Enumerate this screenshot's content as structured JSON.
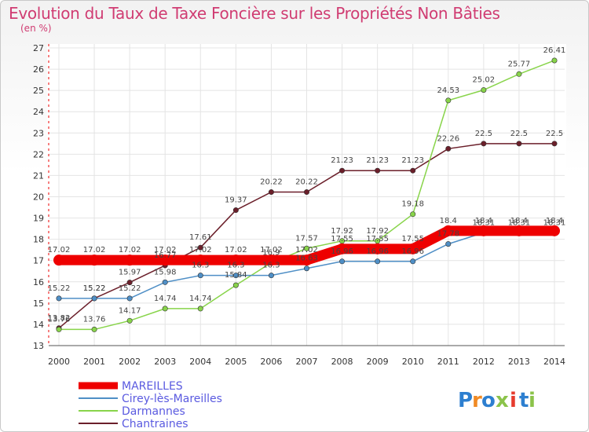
{
  "chart_data": {
    "type": "line",
    "title": "Evolution du Taux de Taxe Foncière sur les Propriétés Non Bâties",
    "subtitle": "(en %)",
    "x": [
      "2000",
      "2001",
      "2002",
      "2003",
      "2004",
      "2005",
      "2006",
      "2007",
      "2008",
      "2009",
      "2010",
      "2011",
      "2012",
      "2013",
      "2014"
    ],
    "ylim": [
      13,
      27
    ],
    "yticks": [
      "13",
      "14",
      "15",
      "16",
      "17",
      "18",
      "19",
      "20",
      "21",
      "22",
      "23",
      "24",
      "25",
      "26",
      "27"
    ],
    "grid": true,
    "legend_position": "bottom-left",
    "series": [
      {
        "name": "MAREILLES",
        "color": "#ee0000",
        "values": [
          17.02,
          17.02,
          17.02,
          17.02,
          17.02,
          17.02,
          17.02,
          17.02,
          17.55,
          17.55,
          17.55,
          18.4,
          18.4,
          18.4,
          18.4
        ],
        "labels": [
          "17.02",
          "17.02",
          "17.02",
          "17.02",
          "17.02",
          "17.02",
          "17.02",
          "17.02",
          "17.55",
          "17.55",
          "17.55",
          "18.4",
          "18.4",
          "18.4",
          "18.4"
        ]
      },
      {
        "name": "Cirey-lès-Mareilles",
        "color": "#4f8fc6",
        "values": [
          15.22,
          15.22,
          15.22,
          15.98,
          16.3,
          16.3,
          16.3,
          16.63,
          16.96,
          16.96,
          16.96,
          17.78,
          18.31,
          18.31,
          18.31
        ],
        "labels": [
          "15.22",
          "15.22",
          "15.22",
          "15.98",
          "16.3",
          "16.3",
          "16.3",
          "16.63",
          "16.96",
          "16.96",
          "16.96",
          "17.78",
          "18.31",
          "18.31",
          "18.31"
        ]
      },
      {
        "name": "Darmannes",
        "color": "#88d44a",
        "values": [
          13.76,
          13.76,
          14.17,
          14.74,
          14.74,
          15.84,
          16.9,
          17.57,
          17.92,
          17.92,
          19.18,
          24.53,
          25.02,
          25.77,
          26.41
        ],
        "labels": [
          "13.76",
          "13.76",
          "14.17",
          "14.74",
          "14.74",
          "15.84",
          "16.9",
          "17.57",
          "17.92",
          "17.92",
          "19.18",
          "24.53",
          "25.02",
          "25.77",
          "26.41"
        ]
      },
      {
        "name": "Chantraines",
        "color": "#6b1f2a",
        "values": [
          13.82,
          15.22,
          15.97,
          16.77,
          17.61,
          19.37,
          20.22,
          20.22,
          21.23,
          21.23,
          21.23,
          22.26,
          22.5,
          22.5,
          22.5
        ],
        "labels": [
          "13.82",
          "15.22",
          "15.97",
          "16.77",
          "17.61",
          "19.37",
          "20.22",
          "20.22",
          "21.23",
          "21.23",
          "21.23",
          "22.26",
          "22.5",
          "22.5",
          "22.5"
        ]
      }
    ]
  },
  "brand": {
    "name": "Proxiti",
    "letters": [
      "P",
      "r",
      "o",
      "x",
      "i",
      "t",
      "i"
    ],
    "colors": [
      "#2d7fd0",
      "#f08a24",
      "#2d7fd0",
      "#8bc34a",
      "#e63b2e",
      "#2d7fd0",
      "#8bc34a"
    ]
  }
}
